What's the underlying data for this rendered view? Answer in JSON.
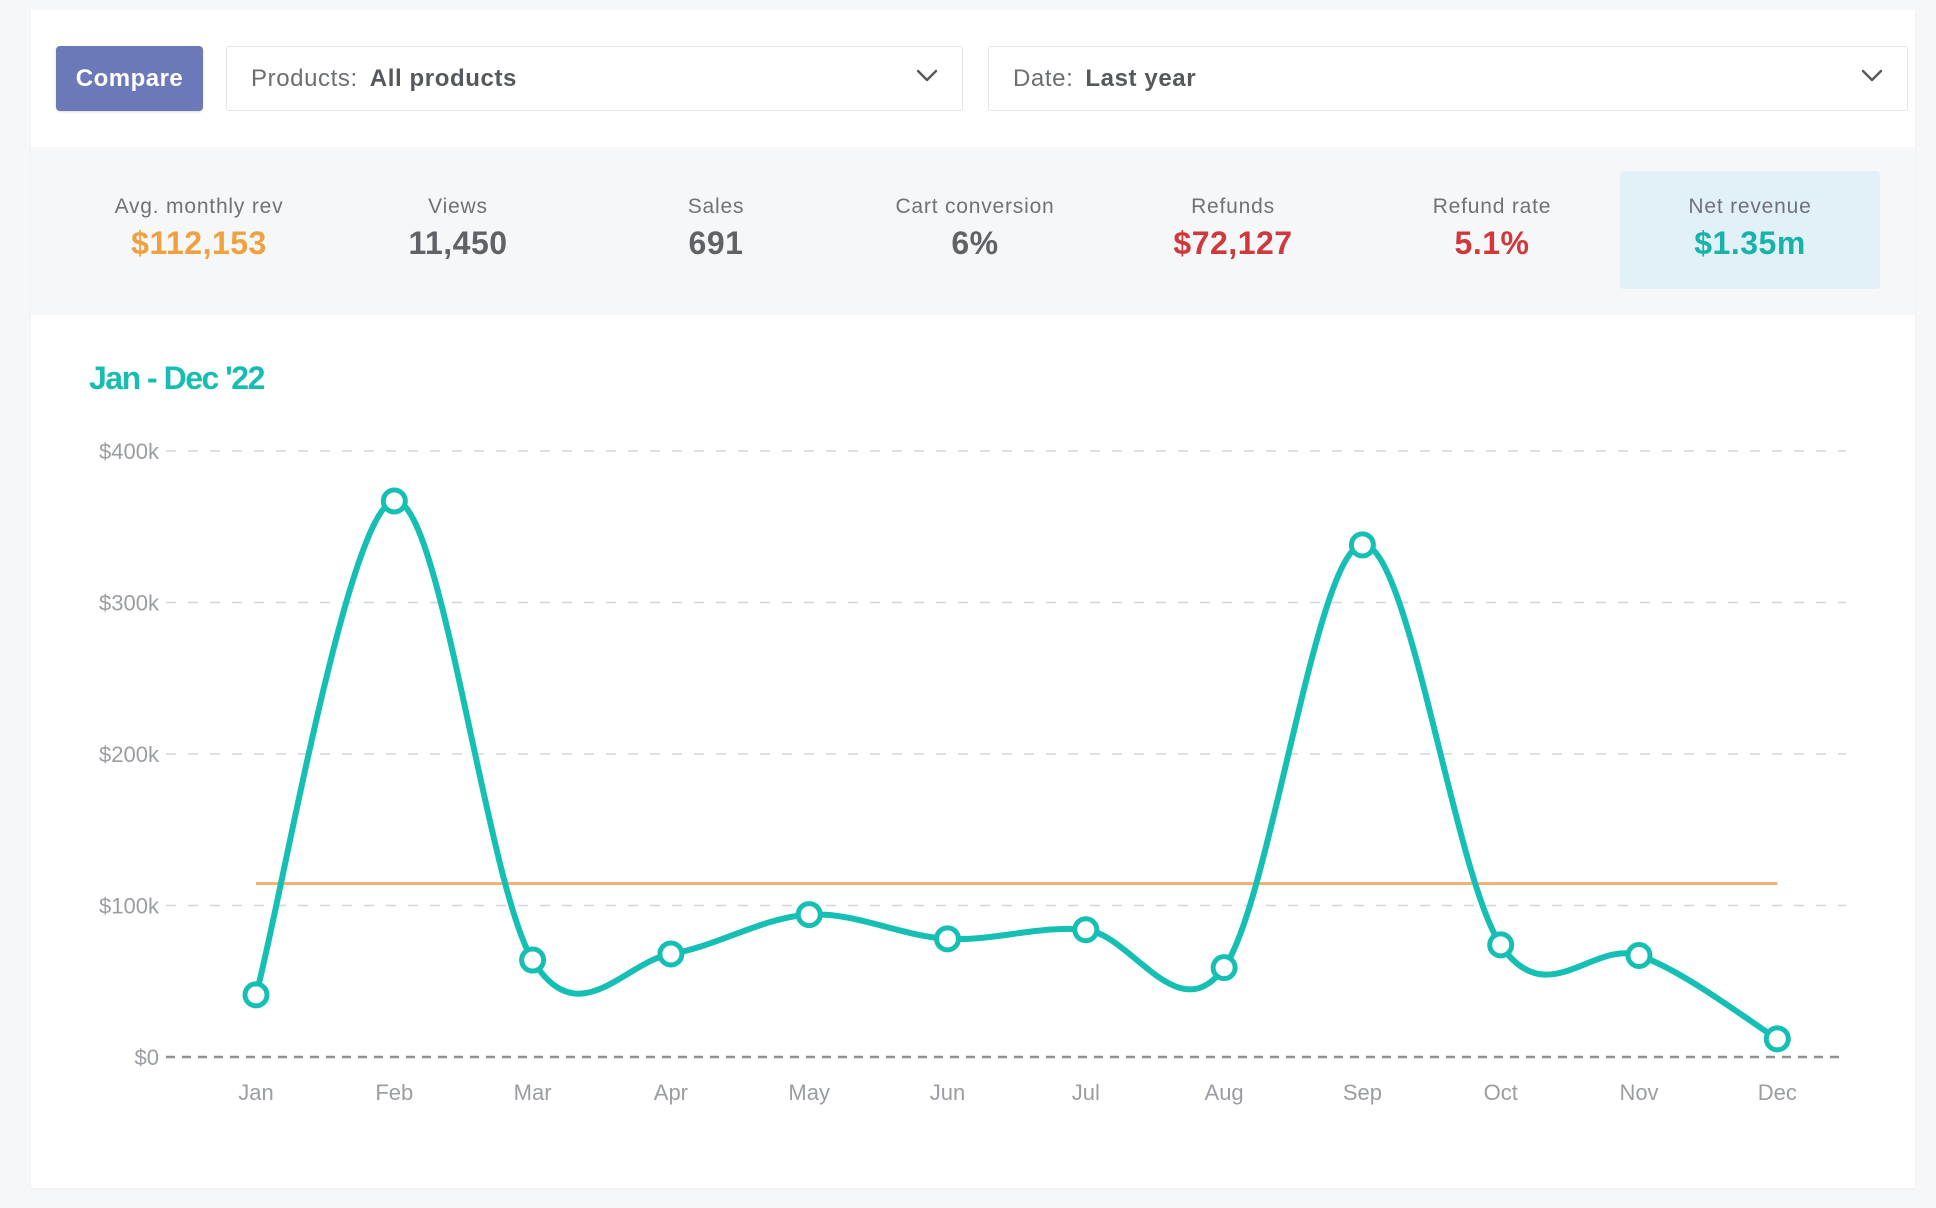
{
  "toolbar": {
    "compare_label": "Compare",
    "products_label": "Products:",
    "products_value": "All products",
    "date_label": "Date:",
    "date_value": "Last year"
  },
  "stats": [
    {
      "label": "Avg. monthly rev",
      "value": "$112,153",
      "color": "#f0a03f"
    },
    {
      "label": "Views",
      "value": "11,450",
      "color": "#5f6266"
    },
    {
      "label": "Sales",
      "value": "691",
      "color": "#5f6266"
    },
    {
      "label": "Cart conversion",
      "value": "6%",
      "color": "#5f6266"
    },
    {
      "label": "Refunds",
      "value": "$72,127",
      "color": "#d0393b"
    },
    {
      "label": "Refund rate",
      "value": "5.1%",
      "color": "#d0393b"
    },
    {
      "label": "Net revenue",
      "value": "$1.35m",
      "color": "#17b3a8"
    }
  ],
  "icons": {
    "dropdown": "chevron-down-icon"
  },
  "chart_data": {
    "type": "line",
    "title": "Jan - Dec '22",
    "categories": [
      "Jan",
      "Feb",
      "Mar",
      "Apr",
      "May",
      "Jun",
      "Jul",
      "Aug",
      "Sep",
      "Oct",
      "Nov",
      "Dec"
    ],
    "series": [
      {
        "values": [
          41000,
          367000,
          64000,
          68000,
          94000,
          78000,
          84000,
          59000,
          338000,
          74000,
          67000,
          12000
        ],
        "color": "#15bfb4",
        "smooth": true,
        "markers": "hollow-circle"
      }
    ],
    "reference_line": {
      "value": 114500,
      "color": "#f3b273"
    },
    "yticks": [
      {
        "value": 0,
        "label": "$0"
      },
      {
        "value": 100000,
        "label": "$100k"
      },
      {
        "value": 200000,
        "label": "$200k"
      },
      {
        "value": 300000,
        "label": "$300k"
      },
      {
        "value": 400000,
        "label": "$400k"
      }
    ],
    "ylim": [
      0,
      400000
    ],
    "grid": "dashed-horizontal",
    "xlabel": "",
    "ylabel": ""
  }
}
